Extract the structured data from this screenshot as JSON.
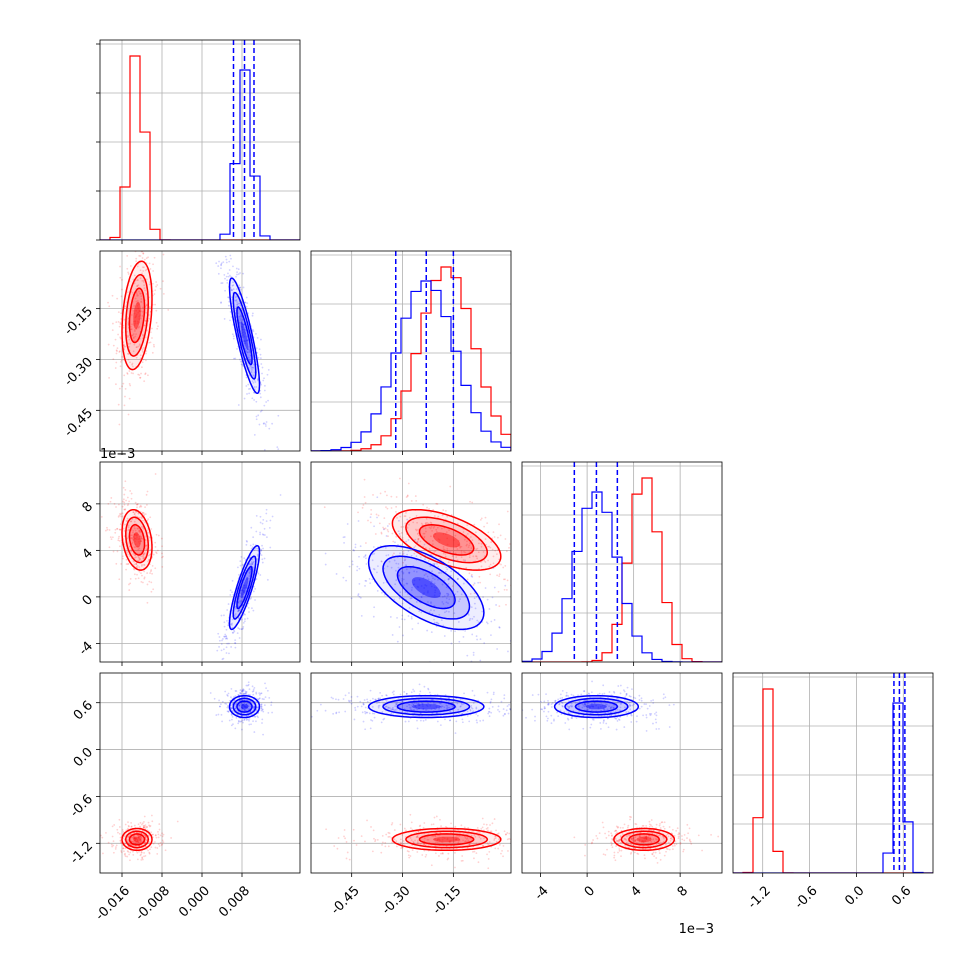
{
  "chart_data": {
    "type": "scatter",
    "title": "",
    "colors": {
      "series_a": "#ff0000",
      "series_b": "#0000ff"
    },
    "grid": true,
    "legend": "none",
    "parameters": [
      {
        "ticks": [
          "-0.016",
          "-0.008",
          "0.000",
          "0.008"
        ],
        "tick_values": [
          -0.016,
          -0.008,
          0.0,
          0.008
        ],
        "range": [
          -0.0204,
          0.0196
        ],
        "series_a": {
          "mean": -0.013,
          "std": 0.0015
        },
        "series_b": {
          "mean": 0.0085,
          "std": 0.0015
        },
        "series_b_quantiles": [
          0.0063,
          0.0085,
          0.0104
        ]
      },
      {
        "ticks": [
          "-0.45",
          "-0.30",
          "-0.15"
        ],
        "tick_values": [
          -0.45,
          -0.3,
          -0.15
        ],
        "range": [
          -0.57,
          0.02
        ],
        "series_a": {
          "mean": -0.17,
          "std": 0.08
        },
        "series_b": {
          "mean": -0.23,
          "std": 0.085
        },
        "series_b_quantiles": [
          -0.32,
          -0.23,
          -0.15
        ]
      },
      {
        "ticks": [
          "-4",
          "0",
          "4",
          "8"
        ],
        "tick_values": [
          -4,
          0,
          4,
          8
        ],
        "range": [
          -5.6,
          11.6
        ],
        "sci_label": "1e−3",
        "series_a": {
          "mean": 4.9,
          "std": 1.3
        },
        "series_b": {
          "mean": 0.8,
          "std": 1.8
        },
        "series_b_quantiles": [
          -1.1,
          0.8,
          2.6
        ]
      },
      {
        "ticks": [
          "-1.2",
          "-0.6",
          "0.0",
          "0.6"
        ],
        "tick_values": [
          -1.2,
          -0.6,
          0.0,
          0.6
        ],
        "range": [
          -1.58,
          0.98
        ],
        "series_a": {
          "mean": -1.15,
          "std": 0.07
        },
        "series_b": {
          "mean": 0.55,
          "std": 0.07
        },
        "series_b_quantiles": [
          0.48,
          0.55,
          0.62
        ]
      }
    ],
    "correlations": {
      "series_a": {
        "1-0": 0.3,
        "2-0": -0.25,
        "2-1": -0.55,
        "3-0": 0.0,
        "3-1": 0.0,
        "3-2": 0.0
      },
      "series_b": {
        "1-0": -0.85,
        "2-0": 0.85,
        "2-1": -0.6,
        "3-0": 0.0,
        "3-1": 0.0,
        "3-2": 0.0
      }
    },
    "histogram_bins": 20
  }
}
